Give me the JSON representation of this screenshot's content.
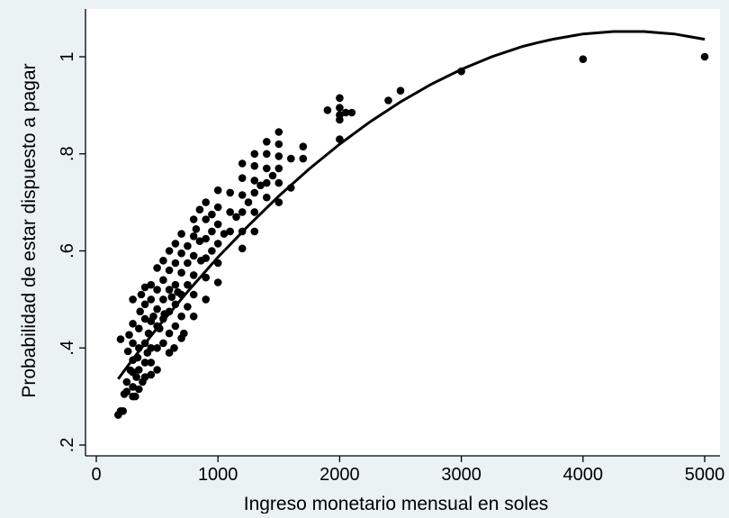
{
  "chart_data": {
    "type": "scatter",
    "title": "",
    "xlabel": "Ingreso monetario mensual en soles",
    "ylabel": "Probabilidad de estar dispuesto a pagar",
    "xlim": [
      -20,
      5020
    ],
    "ylim": [
      0.185,
      1.085
    ],
    "x_ticks": [
      0,
      1000,
      2000,
      3000,
      4000,
      5000
    ],
    "x_tick_labels": [
      "0",
      "1000",
      "2000",
      "3000",
      "4000",
      "5000"
    ],
    "y_ticks": [
      0.2,
      0.4,
      0.6,
      0.8,
      1
    ],
    "y_tick_labels": [
      ".2",
      ".4",
      ".6",
      ".8",
      "1"
    ],
    "grid": false,
    "legend": "none",
    "colors": {
      "background": "#eaf2f3",
      "plot_area": "#ffffff",
      "marks": "#000000"
    },
    "series": [
      {
        "type": "scatter",
        "points": [
          [
            180,
            0.262
          ],
          [
            200,
            0.27
          ],
          [
            220,
            0.27
          ],
          [
            230,
            0.305
          ],
          [
            200,
            0.418
          ],
          [
            250,
            0.31
          ],
          [
            250,
            0.33
          ],
          [
            260,
            0.393
          ],
          [
            270,
            0.427
          ],
          [
            280,
            0.354
          ],
          [
            300,
            0.3
          ],
          [
            300,
            0.32
          ],
          [
            300,
            0.35
          ],
          [
            300,
            0.375
          ],
          [
            300,
            0.41
          ],
          [
            300,
            0.45
          ],
          [
            300,
            0.5
          ],
          [
            320,
            0.3
          ],
          [
            330,
            0.34
          ],
          [
            340,
            0.38
          ],
          [
            350,
            0.315
          ],
          [
            350,
            0.355
          ],
          [
            350,
            0.4
          ],
          [
            350,
            0.44
          ],
          [
            360,
            0.475
          ],
          [
            370,
            0.51
          ],
          [
            380,
            0.33
          ],
          [
            400,
            0.34
          ],
          [
            400,
            0.37
          ],
          [
            400,
            0.41
          ],
          [
            400,
            0.46
          ],
          [
            400,
            0.49
          ],
          [
            400,
            0.525
          ],
          [
            420,
            0.39
          ],
          [
            430,
            0.43
          ],
          [
            450,
            0.345
          ],
          [
            450,
            0.37
          ],
          [
            450,
            0.4
          ],
          [
            450,
            0.455
          ],
          [
            450,
            0.5
          ],
          [
            450,
            0.53
          ],
          [
            470,
            0.465
          ],
          [
            500,
            0.355
          ],
          [
            500,
            0.4
          ],
          [
            500,
            0.445
          ],
          [
            500,
            0.48
          ],
          [
            500,
            0.52
          ],
          [
            500,
            0.565
          ],
          [
            520,
            0.44
          ],
          [
            550,
            0.41
          ],
          [
            550,
            0.46
          ],
          [
            550,
            0.5
          ],
          [
            550,
            0.54
          ],
          [
            550,
            0.58
          ],
          [
            560,
            0.47
          ],
          [
            600,
            0.39
          ],
          [
            600,
            0.43
          ],
          [
            600,
            0.475
          ],
          [
            600,
            0.52
          ],
          [
            600,
            0.56
          ],
          [
            600,
            0.6
          ],
          [
            620,
            0.505
          ],
          [
            640,
            0.4
          ],
          [
            650,
            0.445
          ],
          [
            650,
            0.49
          ],
          [
            650,
            0.53
          ],
          [
            650,
            0.575
          ],
          [
            650,
            0.615
          ],
          [
            670,
            0.515
          ],
          [
            700,
            0.42
          ],
          [
            700,
            0.465
          ],
          [
            700,
            0.51
          ],
          [
            700,
            0.555
          ],
          [
            700,
            0.595
          ],
          [
            700,
            0.635
          ],
          [
            720,
            0.43
          ],
          [
            750,
            0.485
          ],
          [
            750,
            0.53
          ],
          [
            750,
            0.575
          ],
          [
            750,
            0.61
          ],
          [
            800,
            0.465
          ],
          [
            800,
            0.51
          ],
          [
            800,
            0.55
          ],
          [
            800,
            0.59
          ],
          [
            800,
            0.63
          ],
          [
            800,
            0.665
          ],
          [
            820,
            0.645
          ],
          [
            850,
            0.685
          ],
          [
            850,
            0.62
          ],
          [
            860,
            0.58
          ],
          [
            900,
            0.5
          ],
          [
            900,
            0.545
          ],
          [
            900,
            0.585
          ],
          [
            900,
            0.625
          ],
          [
            900,
            0.665
          ],
          [
            900,
            0.7
          ],
          [
            950,
            0.6
          ],
          [
            950,
            0.64
          ],
          [
            950,
            0.675
          ],
          [
            1000,
            0.535
          ],
          [
            1000,
            0.575
          ],
          [
            1000,
            0.615
          ],
          [
            1000,
            0.655
          ],
          [
            1000,
            0.69
          ],
          [
            1000,
            0.725
          ],
          [
            1050,
            0.635
          ],
          [
            1100,
            0.64
          ],
          [
            1100,
            0.68
          ],
          [
            1100,
            0.72
          ],
          [
            1150,
            0.67
          ],
          [
            1200,
            0.605
          ],
          [
            1200,
            0.64
          ],
          [
            1200,
            0.68
          ],
          [
            1200,
            0.715
          ],
          [
            1200,
            0.75
          ],
          [
            1200,
            0.78
          ],
          [
            1250,
            0.7
          ],
          [
            1300,
            0.64
          ],
          [
            1300,
            0.68
          ],
          [
            1300,
            0.72
          ],
          [
            1300,
            0.745
          ],
          [
            1300,
            0.775
          ],
          [
            1300,
            0.8
          ],
          [
            1350,
            0.735
          ],
          [
            1400,
            0.71
          ],
          [
            1400,
            0.74
          ],
          [
            1400,
            0.77
          ],
          [
            1400,
            0.8
          ],
          [
            1400,
            0.825
          ],
          [
            1450,
            0.755
          ],
          [
            1500,
            0.7
          ],
          [
            1500,
            0.74
          ],
          [
            1500,
            0.77
          ],
          [
            1500,
            0.795
          ],
          [
            1500,
            0.82
          ],
          [
            1500,
            0.845
          ],
          [
            1600,
            0.73
          ],
          [
            1600,
            0.79
          ],
          [
            1700,
            0.79
          ],
          [
            1700,
            0.815
          ],
          [
            1900,
            0.89
          ],
          [
            2000,
            0.83
          ],
          [
            2000,
            0.87
          ],
          [
            2000,
            0.88
          ],
          [
            2000,
            0.895
          ],
          [
            2000,
            0.915
          ],
          [
            2050,
            0.885
          ],
          [
            2100,
            0.885
          ],
          [
            2400,
            0.91
          ],
          [
            2500,
            0.93
          ],
          [
            3000,
            0.97
          ],
          [
            4000,
            0.995
          ],
          [
            5000,
            1.0
          ]
        ]
      },
      {
        "type": "line",
        "curve": "quadratic fit",
        "points": [
          [
            180,
            0.336
          ],
          [
            300,
            0.377
          ],
          [
            500,
            0.441
          ],
          [
            750,
            0.516
          ],
          [
            1000,
            0.587
          ],
          [
            1250,
            0.652
          ],
          [
            1500,
            0.713
          ],
          [
            1750,
            0.769
          ],
          [
            2000,
            0.82
          ],
          [
            2250,
            0.866
          ],
          [
            2500,
            0.907
          ],
          [
            2750,
            0.943
          ],
          [
            3000,
            0.974
          ],
          [
            3250,
            1.0
          ],
          [
            3500,
            1.021
          ],
          [
            3625,
            1.029
          ],
          [
            3750,
            1.036
          ],
          [
            4000,
            1.047
          ],
          [
            4250,
            1.052
          ],
          [
            4500,
            1.052
          ],
          [
            4750,
            1.047
          ],
          [
            5000,
            1.036
          ]
        ]
      }
    ]
  }
}
